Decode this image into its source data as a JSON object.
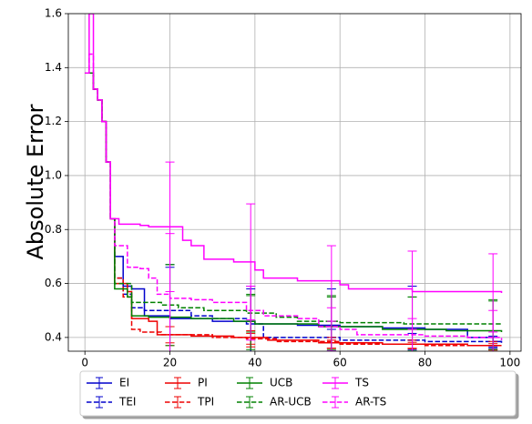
{
  "chart_data": {
    "type": "line",
    "y_label": "Absolute Error",
    "xlim": [
      -3.9,
      102.6
    ],
    "ylim": [
      0.349,
      1.6
    ],
    "xticks": [
      0,
      20,
      40,
      60,
      80,
      100
    ],
    "yticks": [
      0.4,
      0.6,
      0.8,
      {
        "value": 1,
        "label": "1.0"
      },
      1.2,
      1.4,
      1.6
    ],
    "grid": true,
    "drawstyle": "steps-post",
    "legend": {
      "position": "bottom-outside",
      "ncol": 5,
      "shadow": true
    },
    "series": [
      {
        "name": "EI",
        "color": "#0000cc",
        "dash": false,
        "x": [
          0,
          1,
          2,
          3,
          4,
          5,
          6,
          7,
          9,
          11,
          14,
          20,
          30,
          40,
          50,
          60,
          70,
          80,
          90,
          96,
          98
        ],
        "values": [
          1.38,
          1.38,
          1.32,
          1.28,
          1.2,
          1.05,
          0.84,
          0.7,
          0.59,
          0.58,
          0.48,
          0.47,
          0.46,
          0.45,
          0.445,
          0.44,
          0.435,
          0.43,
          0.4,
          0.385,
          0.385
        ],
        "errorbars": {
          "x": [
            20,
            39,
            58,
            77,
            96
          ],
          "values": [
            0.47,
            0.45,
            0.44,
            0.43,
            0.385
          ],
          "errors": [
            0.2,
            0.14,
            0.14,
            0.16,
            0.02
          ]
        }
      },
      {
        "name": "TEI",
        "color": "#0000cc",
        "dash": true,
        "x": [
          0,
          1,
          2,
          3,
          4,
          5,
          6,
          7,
          9,
          11,
          14,
          25,
          30,
          38,
          42,
          60,
          80,
          98
        ],
        "values": [
          1.38,
          1.38,
          1.32,
          1.28,
          1.2,
          1.05,
          0.84,
          0.62,
          0.56,
          0.51,
          0.5,
          0.48,
          0.47,
          0.45,
          0.4,
          0.39,
          0.385,
          0.38
        ],
        "errorbars": {
          "x": [
            20,
            39,
            58,
            77,
            96
          ],
          "values": [
            0.49,
            0.45,
            0.39,
            0.385,
            0.38
          ],
          "errors": [
            0.17,
            0.13,
            0.04,
            0.03,
            0.02
          ]
        }
      },
      {
        "name": "PI",
        "color": "#ee0000",
        "dash": false,
        "x": [
          0,
          1,
          2,
          3,
          4,
          5,
          6,
          7,
          10,
          11,
          15,
          17,
          25,
          35,
          43,
          55,
          70,
          90,
          98
        ],
        "values": [
          1.38,
          1.38,
          1.32,
          1.28,
          1.2,
          1.05,
          0.84,
          0.6,
          0.57,
          0.47,
          0.46,
          0.41,
          0.405,
          0.4,
          0.39,
          0.38,
          0.375,
          0.37,
          0.37
        ],
        "errorbars": {
          "x": [
            20,
            39,
            58,
            77,
            96
          ],
          "values": [
            0.405,
            0.395,
            0.38,
            0.375,
            0.37
          ],
          "errors": [
            0.035,
            0.03,
            0.02,
            0.015,
            0.015
          ]
        }
      },
      {
        "name": "TPI",
        "color": "#ee0000",
        "dash": true,
        "x": [
          0,
          1,
          2,
          3,
          4,
          5,
          6,
          7,
          9,
          11,
          13,
          18,
          30,
          38,
          45,
          60,
          80,
          98
        ],
        "values": [
          1.38,
          1.38,
          1.32,
          1.28,
          1.2,
          1.05,
          0.84,
          0.62,
          0.55,
          0.43,
          0.42,
          0.41,
          0.4,
          0.395,
          0.385,
          0.375,
          0.37,
          0.365
        ],
        "errorbars": {
          "x": [
            20,
            39,
            58,
            77,
            96
          ],
          "values": [
            0.41,
            0.395,
            0.375,
            0.37,
            0.365
          ],
          "errors": [
            0.03,
            0.02,
            0.015,
            0.012,
            0.012
          ]
        }
      },
      {
        "name": "UCB",
        "color": "#008000",
        "dash": false,
        "x": [
          0,
          1,
          2,
          3,
          4,
          5,
          6,
          7,
          10,
          11,
          15,
          25,
          35,
          40,
          55,
          70,
          85,
          98
        ],
        "values": [
          1.38,
          1.38,
          1.32,
          1.28,
          1.2,
          1.05,
          0.84,
          0.58,
          0.55,
          0.48,
          0.475,
          0.47,
          0.46,
          0.45,
          0.44,
          0.43,
          0.425,
          0.42
        ],
        "errorbars": {
          "x": [
            20,
            39,
            58,
            77,
            96
          ],
          "values": [
            0.47,
            0.455,
            0.44,
            0.43,
            0.42
          ],
          "errors": [
            0.2,
            0.1,
            0.11,
            0.12,
            0.12
          ]
        }
      },
      {
        "name": "AR-UCB",
        "color": "#008000",
        "dash": true,
        "x": [
          0,
          1,
          2,
          3,
          4,
          5,
          6,
          7,
          11,
          18,
          22,
          28,
          38,
          45,
          50,
          60,
          75,
          98
        ],
        "values": [
          1.38,
          1.38,
          1.32,
          1.28,
          1.2,
          1.05,
          0.84,
          0.6,
          0.53,
          0.52,
          0.51,
          0.5,
          0.49,
          0.475,
          0.46,
          0.455,
          0.45,
          0.445
        ],
        "errorbars": {
          "x": [
            20,
            39,
            58,
            77,
            96
          ],
          "values": [
            0.52,
            0.49,
            0.455,
            0.45,
            0.445
          ],
          "errors": [
            0.15,
            0.07,
            0.1,
            0.1,
            0.09
          ]
        }
      },
      {
        "name": "TS",
        "color": "#ff00ff",
        "dash": false,
        "x": [
          0,
          1,
          2,
          3,
          4,
          5,
          6,
          8,
          13,
          15,
          23,
          25,
          28,
          35,
          40,
          42,
          50,
          60,
          62,
          77,
          98
        ],
        "values": [
          1.38,
          1.6,
          1.32,
          1.28,
          1.2,
          1.05,
          0.84,
          0.82,
          0.815,
          0.81,
          0.76,
          0.74,
          0.69,
          0.68,
          0.65,
          0.62,
          0.61,
          0.595,
          0.58,
          0.57,
          0.565
        ],
        "errorbars": {
          "x": [
            20,
            39,
            58,
            77,
            96
          ],
          "values": [
            0.81,
            0.68,
            0.6,
            0.575,
            0.565
          ],
          "errors": [
            0.24,
            0.215,
            0.14,
            0.145,
            0.145
          ]
        }
      },
      {
        "name": "AR-TS",
        "color": "#ff00ff",
        "dash": true,
        "x": [
          0,
          1,
          2,
          3,
          4,
          5,
          6,
          7,
          10,
          13,
          15,
          17,
          20,
          25,
          30,
          38,
          42,
          50,
          55,
          60,
          64,
          80,
          90,
          98
        ],
        "values": [
          1.38,
          1.45,
          1.32,
          1.28,
          1.2,
          1.05,
          0.84,
          0.74,
          0.66,
          0.655,
          0.62,
          0.56,
          0.545,
          0.54,
          0.53,
          0.5,
          0.48,
          0.47,
          0.44,
          0.43,
          0.41,
          0.405,
          0.4,
          0.39
        ],
        "errorbars": {
          "x": [
            20,
            39,
            58,
            77,
            96
          ],
          "values": [
            0.545,
            0.49,
            0.43,
            0.405,
            0.4
          ],
          "errors": [
            0.24,
            0.1,
            0.08,
            0.065,
            0.1
          ]
        }
      }
    ]
  }
}
